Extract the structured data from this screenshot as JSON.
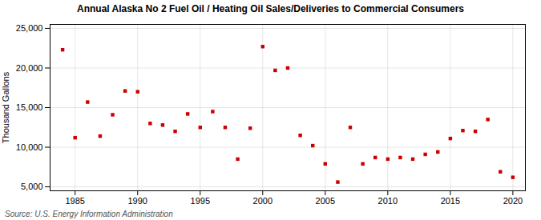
{
  "chart_data": {
    "type": "scatter",
    "title": "Annual Alaska No 2 Fuel Oil / Heating Oil Sales/Deliveries to Commercial Consumers",
    "ylabel": "Thousand Gallons",
    "source": "Source: U.S. Energy Information Administration",
    "x": [
      1984,
      1985,
      1986,
      1987,
      1988,
      1989,
      1990,
      1991,
      1992,
      1993,
      1994,
      1995,
      1996,
      1997,
      1998,
      1999,
      2000,
      2001,
      2002,
      2003,
      2004,
      2005,
      2006,
      2007,
      2008,
      2009,
      2010,
      2011,
      2012,
      2013,
      2014,
      2015,
      2016,
      2017,
      2018,
      2019,
      2020
    ],
    "values": [
      22300,
      11200,
      15700,
      11400,
      14100,
      17100,
      17000,
      13000,
      12800,
      12000,
      14200,
      12500,
      14500,
      12500,
      8500,
      12400,
      22700,
      19700,
      20000,
      11500,
      10200,
      7900,
      5600,
      12500,
      7900,
      8700,
      8500,
      8700,
      8500,
      9100,
      9400,
      11100,
      12100,
      12000,
      13500,
      6900,
      6200
    ],
    "color": "#cc0000",
    "marker": "square",
    "xlim": [
      1983,
      2021
    ],
    "xticks": [
      1985,
      1990,
      1995,
      2000,
      2005,
      2010,
      2015,
      2020
    ],
    "ylim": [
      4500,
      25500
    ],
    "yticks": [
      {
        "value": 5000,
        "label": "5,000"
      },
      {
        "value": 10000,
        "label": "10,000"
      },
      {
        "value": 15000,
        "label": "15,000"
      },
      {
        "value": 20000,
        "label": "20,000"
      },
      {
        "value": 25000,
        "label": "25,000"
      }
    ],
    "grid": true
  }
}
